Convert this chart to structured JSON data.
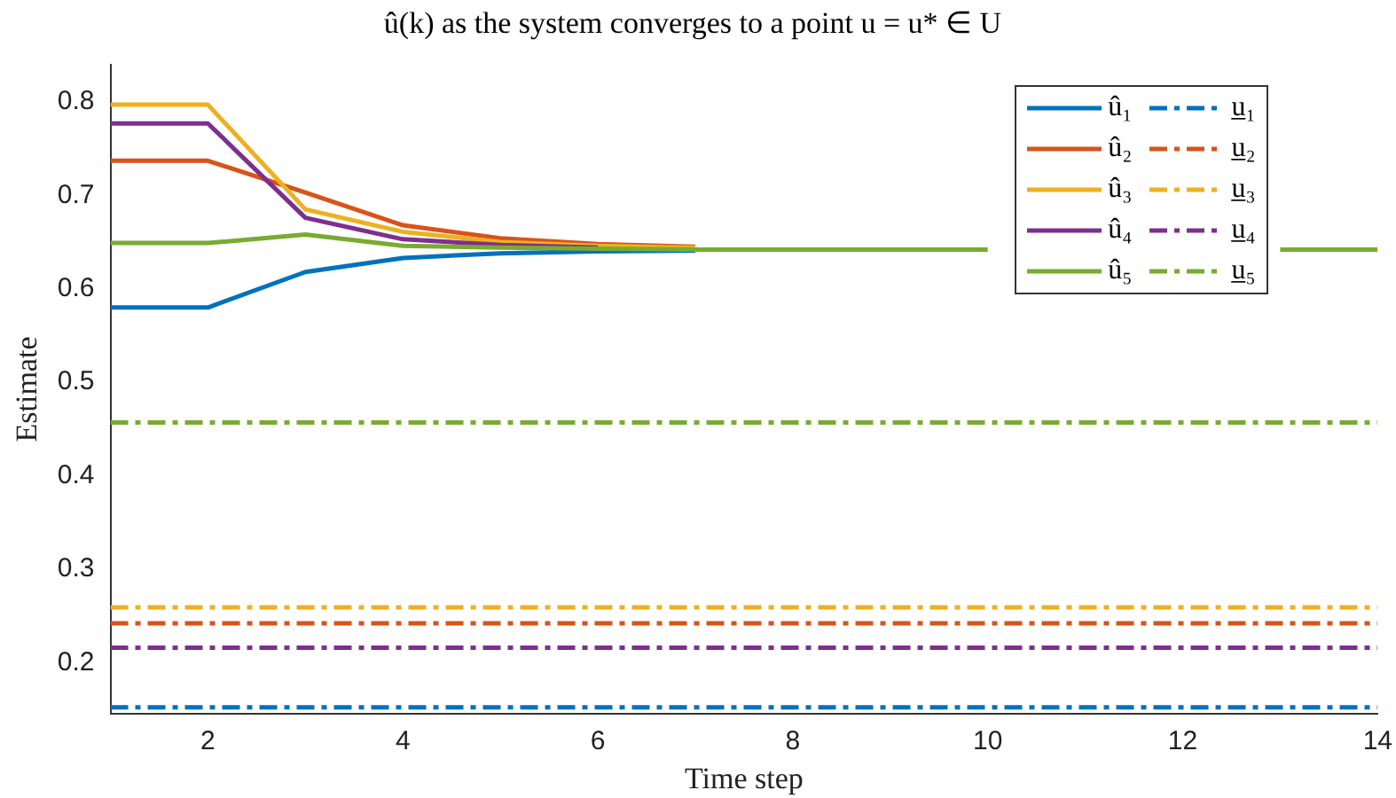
{
  "chart_data": {
    "type": "line",
    "title": "û(k) as the system converges to a point u = u* ∈ U",
    "xlabel": "Time step",
    "ylabel": "Estimate",
    "x": [
      1,
      2,
      3,
      4,
      5,
      6,
      7,
      8,
      9,
      10,
      11,
      12,
      13,
      14
    ],
    "xlim": [
      1,
      14
    ],
    "xticks": [
      2,
      4,
      6,
      8,
      10,
      12,
      14
    ],
    "ylim": [
      0.145,
      0.84
    ],
    "yticks": [
      0.2,
      0.3,
      0.4,
      0.5,
      0.6,
      0.7,
      0.8
    ],
    "grid": false,
    "legend": "top right",
    "marker": "none",
    "series": [
      {
        "name": "û₁",
        "color": "#0072bd",
        "line_style": "solid",
        "values": [
          0.58,
          0.58,
          0.618,
          0.633,
          0.638,
          0.64,
          0.641,
          null,
          null,
          null,
          null,
          null,
          null,
          null
        ]
      },
      {
        "name": "û₂",
        "color": "#d95319",
        "line_style": "solid",
        "values": [
          0.737,
          0.737,
          0.703,
          0.668,
          0.654,
          0.648,
          0.645,
          null,
          null,
          null,
          null,
          null,
          null,
          null
        ]
      },
      {
        "name": "û₃",
        "color": "#edb120",
        "line_style": "solid",
        "values": [
          0.797,
          0.797,
          0.685,
          0.661,
          0.65,
          0.646,
          0.644,
          null,
          null,
          null,
          null,
          null,
          null,
          null
        ]
      },
      {
        "name": "û₄",
        "color": "#7e2f8e",
        "line_style": "solid",
        "values": [
          0.777,
          0.777,
          0.676,
          0.653,
          0.647,
          0.644,
          null,
          null,
          null,
          null,
          null,
          null,
          null,
          null
        ]
      },
      {
        "name": "û₅",
        "color": "#77ac30",
        "line_style": "solid",
        "values": [
          0.649,
          0.649,
          0.658,
          0.646,
          0.644,
          0.643,
          0.642,
          0.642,
          0.642,
          0.642,
          null,
          null,
          0.642,
          0.642
        ]
      },
      {
        "name": "u̲₁",
        "color": "#0072bd",
        "line_style": "dashed",
        "values": [
          0.152,
          0.152,
          0.152,
          0.152,
          0.152,
          0.152,
          0.152,
          0.152,
          0.152,
          0.152,
          0.152,
          0.152,
          0.152,
          0.152
        ]
      },
      {
        "name": "u̲₂",
        "color": "#d95319",
        "line_style": "dashed",
        "values": [
          0.242,
          0.242,
          0.242,
          0.242,
          0.242,
          0.242,
          0.242,
          0.242,
          0.242,
          0.242,
          0.242,
          0.242,
          0.242,
          0.242
        ]
      },
      {
        "name": "u̲₃",
        "color": "#edb120",
        "line_style": "dashed",
        "values": [
          0.259,
          0.259,
          0.259,
          0.259,
          0.259,
          0.259,
          0.259,
          0.259,
          0.259,
          0.259,
          0.259,
          0.259,
          0.259,
          0.259
        ]
      },
      {
        "name": "u̲₄",
        "color": "#7e2f8e",
        "line_style": "dashed",
        "values": [
          0.216,
          0.216,
          0.216,
          0.216,
          0.216,
          0.216,
          0.216,
          0.216,
          0.216,
          0.216,
          0.216,
          0.216,
          0.216,
          0.216
        ]
      },
      {
        "name": "u̲₅",
        "color": "#77ac30",
        "line_style": "dashed",
        "values": [
          0.457,
          0.457,
          0.457,
          0.457,
          0.457,
          0.457,
          0.457,
          0.457,
          0.457,
          0.457,
          0.457,
          0.457,
          0.457,
          0.457
        ]
      }
    ]
  }
}
